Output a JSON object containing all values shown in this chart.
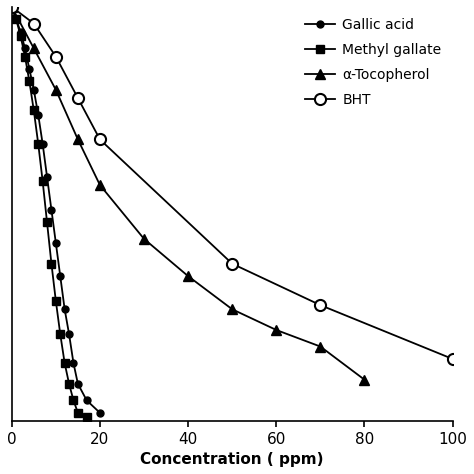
{
  "gallic_acid_x": [
    0,
    1,
    2,
    3,
    4,
    5,
    6,
    7,
    8,
    9,
    10,
    11,
    12,
    13,
    14,
    15,
    17,
    20
  ],
  "gallic_acid_y": [
    100,
    97,
    94,
    90,
    85,
    80,
    74,
    67,
    59,
    51,
    43,
    35,
    27,
    21,
    14,
    9,
    5,
    2
  ],
  "methyl_gallate_x": [
    0,
    1,
    2,
    3,
    4,
    5,
    6,
    7,
    8,
    9,
    10,
    11,
    12,
    13,
    14,
    15,
    17
  ],
  "methyl_gallate_y": [
    100,
    97,
    93,
    88,
    82,
    75,
    67,
    58,
    48,
    38,
    29,
    21,
    14,
    9,
    5,
    2,
    1
  ],
  "alpha_toco_x": [
    0,
    5,
    10,
    15,
    20,
    30,
    40,
    50,
    60,
    70,
    80
  ],
  "alpha_toco_y": [
    100,
    90,
    80,
    68,
    57,
    44,
    35,
    27,
    22,
    18,
    10
  ],
  "bht_x": [
    0,
    5,
    10,
    15,
    20,
    50,
    70,
    100
  ],
  "bht_y": [
    100,
    96,
    88,
    78,
    68,
    38,
    28,
    15
  ],
  "xlabel": "Concentration ( ppm)",
  "xlim": [
    0,
    100
  ],
  "ylim": [
    0,
    100
  ],
  "xticks": [
    0,
    20,
    40,
    60,
    80,
    100
  ],
  "legend_labels": [
    "Gallic acid",
    "Methyl gallate",
    "α-Tocopherol",
    "BHT"
  ],
  "background_color": "#ffffff",
  "line_color": "#000000"
}
